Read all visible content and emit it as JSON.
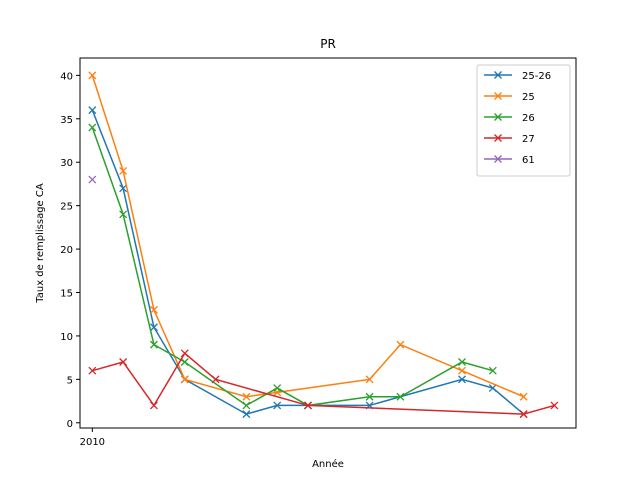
{
  "chart_data": {
    "type": "line",
    "title": "PR",
    "xlabel": "Année",
    "ylabel": "Taux de remplissage CA",
    "x_tick_labels": [
      "2010"
    ],
    "y_ticks": [
      0,
      5,
      10,
      15,
      20,
      25,
      30,
      35,
      40
    ],
    "xlim": [
      2009.6,
      2025.7
    ],
    "ylim": [
      -0.6,
      42.0
    ],
    "grid": false,
    "legend_position": "top-right",
    "marker": "x",
    "series": [
      {
        "name": "25-26",
        "color": "#1f77b4",
        "points": [
          [
            2010,
            36
          ],
          [
            2011,
            27
          ],
          [
            2012,
            11
          ],
          [
            2013,
            5
          ],
          [
            2015,
            1
          ],
          [
            2016,
            2
          ],
          [
            2017,
            2
          ],
          [
            2019,
            2
          ],
          [
            2022,
            5
          ],
          [
            2023,
            4
          ],
          [
            2024,
            1
          ]
        ]
      },
      {
        "name": "25",
        "color": "#ff7f0e",
        "points": [
          [
            2010,
            40
          ],
          [
            2011,
            29
          ],
          [
            2012,
            13
          ],
          [
            2013,
            5
          ],
          [
            2015,
            3
          ],
          [
            2016,
            3.5
          ],
          [
            2019,
            5
          ],
          [
            2020,
            9
          ],
          [
            2022,
            6
          ],
          [
            2024,
            3
          ]
        ]
      },
      {
        "name": "26",
        "color": "#2ca02c",
        "points": [
          [
            2010,
            34
          ],
          [
            2011,
            24
          ],
          [
            2012,
            9
          ],
          [
            2013,
            7
          ],
          [
            2015,
            2
          ],
          [
            2016,
            4
          ],
          [
            2017,
            2
          ],
          [
            2019,
            3
          ],
          [
            2020,
            3
          ],
          [
            2022,
            7
          ],
          [
            2023,
            6
          ]
        ]
      },
      {
        "name": "27",
        "color": "#d62728",
        "points": [
          [
            2010,
            6
          ],
          [
            2011,
            7
          ],
          [
            2012,
            2
          ],
          [
            2013,
            8
          ],
          [
            2014,
            5
          ],
          [
            2017,
            2
          ],
          [
            2024,
            1
          ],
          [
            2025,
            2
          ]
        ]
      },
      {
        "name": "61",
        "color": "#9467bd",
        "points": [
          [
            2010,
            28
          ]
        ]
      }
    ]
  }
}
